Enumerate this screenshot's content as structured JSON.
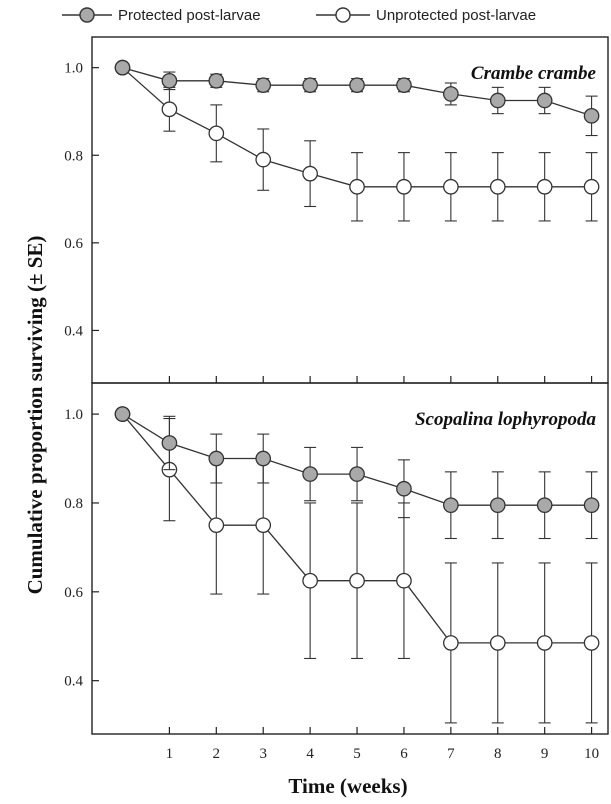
{
  "legend": {
    "protected_label": "Protected post-larvae",
    "unprotected_label": "Unprotected post-larvae"
  },
  "axis": {
    "ylabel": "Cumulative proportion surviving (± SE)",
    "xlabel": "Time (weeks)"
  },
  "colors": {
    "protected_fill": "#a9a9a9",
    "unprotected_fill": "#ffffff",
    "line": "#333333"
  },
  "chart_data": [
    {
      "type": "line",
      "title": "Crambe crambe",
      "x": [
        0,
        1,
        2,
        3,
        4,
        5,
        6,
        7,
        8,
        9,
        10
      ],
      "xticks": [
        1,
        2,
        3,
        4,
        5,
        6,
        7,
        8,
        9,
        10
      ],
      "ylim": [
        0.28,
        1.07
      ],
      "yticks": [
        0.4,
        0.6,
        0.8,
        1.0
      ],
      "ytick_labels": [
        "0.4",
        "0.6",
        "0.8",
        "1.0"
      ],
      "series": [
        {
          "name": "Protected post-larvae",
          "marker": "filled",
          "values": [
            1.0,
            0.97,
            0.97,
            0.96,
            0.96,
            0.96,
            0.96,
            0.94,
            0.925,
            0.925,
            0.89
          ],
          "se": [
            0,
            0.02,
            0.015,
            0.015,
            0.015,
            0.015,
            0.015,
            0.025,
            0.03,
            0.03,
            0.045
          ]
        },
        {
          "name": "Unprotected post-larvae",
          "marker": "open",
          "values": [
            1.0,
            0.905,
            0.85,
            0.79,
            0.758,
            0.728,
            0.728,
            0.728,
            0.728,
            0.728,
            0.728
          ],
          "se": [
            0,
            0.05,
            0.065,
            0.07,
            0.075,
            0.078,
            0.078,
            0.078,
            0.078,
            0.078,
            0.078
          ]
        }
      ]
    },
    {
      "type": "line",
      "title": "Scopalina lophyropoda",
      "x": [
        0,
        1,
        2,
        3,
        4,
        5,
        6,
        7,
        8,
        9,
        10
      ],
      "xticks": [
        1,
        2,
        3,
        4,
        5,
        6,
        7,
        8,
        9,
        10
      ],
      "ylim": [
        0.28,
        1.07
      ],
      "yticks": [
        0.4,
        0.6,
        0.8,
        1.0
      ],
      "ytick_labels": [
        "0.4",
        "0.6",
        "0.8",
        "1.0"
      ],
      "series": [
        {
          "name": "Protected post-larvae",
          "marker": "filled",
          "values": [
            1.0,
            0.935,
            0.9,
            0.9,
            0.865,
            0.865,
            0.832,
            0.795,
            0.795,
            0.795,
            0.795
          ],
          "se": [
            0,
            0.06,
            0.055,
            0.055,
            0.06,
            0.06,
            0.065,
            0.075,
            0.075,
            0.075,
            0.075
          ]
        },
        {
          "name": "Unprotected post-larvae",
          "marker": "open",
          "values": [
            1.0,
            0.875,
            0.75,
            0.75,
            0.625,
            0.625,
            0.625,
            0.485,
            0.485,
            0.485,
            0.485
          ],
          "se": [
            0,
            0.115,
            0.155,
            0.155,
            0.175,
            0.175,
            0.175,
            0.18,
            0.18,
            0.18,
            0.18
          ]
        }
      ]
    }
  ]
}
